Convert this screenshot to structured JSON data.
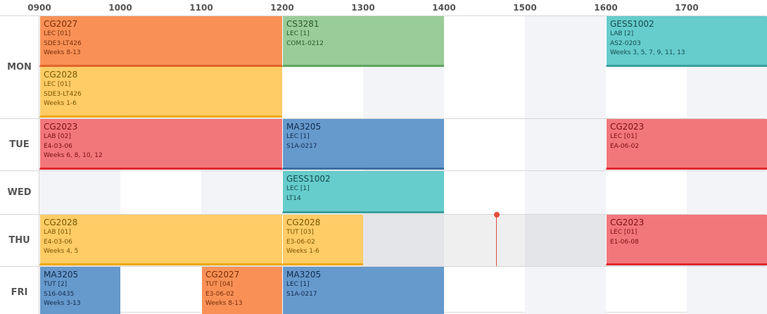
{
  "hours": [
    "0900",
    "1000",
    "1100",
    "1200",
    "1300",
    "1400",
    "1500",
    "1600",
    "1700"
  ],
  "days": [
    {
      "label": "MON",
      "rows": [
        [
          {
            "code": "CG2027",
            "type": "LEC [01]",
            "venue": "SDE3-LT426",
            "weeks": "Weeks 8-13"
          },
          {
            "code": "CS3281",
            "type": "LEC [1]",
            "venue": "COM1-0212"
          },
          {
            "code": "GESS1002",
            "type": "LAB [2]",
            "venue": "AS2-0203",
            "weeks": "Weeks 3, 5, 7, 9, 11, 13"
          }
        ],
        [
          {
            "code": "CG2028",
            "type": "LEC [01]",
            "venue": "SDE3-LT426",
            "weeks": "Weeks 1-6"
          }
        ]
      ]
    },
    {
      "label": "TUE",
      "rows": [
        [
          {
            "code": "CG2023",
            "type": "LAB [02]",
            "venue": "E4-03-06",
            "weeks": "Weeks 6, 8, 10, 12"
          },
          {
            "code": "MA3205",
            "type": "LEC [1]",
            "venue": "S1A-0217"
          },
          {
            "code": "CG2023",
            "type": "LEC [01]",
            "venue": "EA-06-02"
          }
        ]
      ]
    },
    {
      "label": "WED",
      "rows": [
        [
          {
            "code": "GESS1002",
            "type": "LEC [1]",
            "venue": "LT14"
          }
        ]
      ]
    },
    {
      "label": "THU",
      "rows": [
        [
          {
            "code": "CG2028",
            "type": "LAB [01]",
            "venue": "E4-03-06",
            "weeks": "Weeks 4, 5"
          },
          {
            "code": "CG2028",
            "type": "TUT [03]",
            "venue": "E3-06-02",
            "weeks": "Weeks 1-6"
          },
          {
            "code": "CG2023",
            "type": "LEC [01]",
            "venue": "E1-06-08"
          }
        ]
      ]
    },
    {
      "label": "FRI",
      "rows": [
        [
          {
            "code": "MA3205",
            "type": "TUT [2]",
            "venue": "S16-0435",
            "weeks": "Weeks 3-13"
          },
          {
            "code": "CG2027",
            "type": "TUT [04]",
            "venue": "E3-06-02",
            "weeks": "Weeks 8-13"
          },
          {
            "code": "MA3205",
            "type": "LEC [1]",
            "venue": "S1A-0217"
          }
        ]
      ]
    }
  ]
}
